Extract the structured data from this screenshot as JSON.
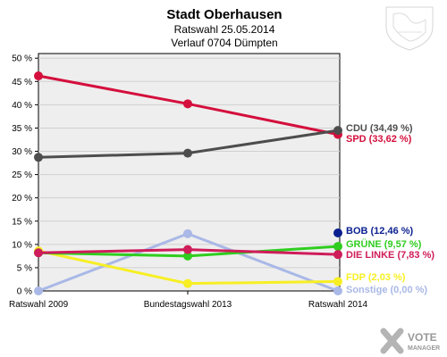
{
  "header": {
    "title": "Stadt Oberhausen",
    "subtitle1": "Ratswahl 25.05.2014",
    "subtitle2": "Verlauf 0704 Dümpten"
  },
  "watermark": {
    "line1": "VOTE",
    "line2": "MANAGER"
  },
  "chart_data": {
    "type": "line",
    "categories": [
      "Ratswahl 2009",
      "Bundestagswahl 2013",
      "Ratswahl 2014"
    ],
    "y_tick_labels": [
      "0 %",
      "5 %",
      "10 %",
      "15 %",
      "20 %",
      "25 %",
      "30 %",
      "35 %",
      "40 %",
      "45 %",
      "50 %"
    ],
    "ylim": [
      0,
      51
    ],
    "series": [
      {
        "name": "CDU",
        "label": "CDU (34,49 %)",
        "color": "#4d4d4d",
        "values": [
          28.7,
          29.6,
          34.49
        ]
      },
      {
        "name": "SPD",
        "label": "SPD (33,62 %)",
        "color": "#d40f3c",
        "values": [
          46.2,
          40.2,
          33.62
        ]
      },
      {
        "name": "BOB",
        "label": "BOB (12,46 %)",
        "color": "#0a1f8f",
        "values": [
          null,
          null,
          12.46
        ]
      },
      {
        "name": "GRÜNE",
        "label": "GRÜNE (9,57 %)",
        "color": "#2fcd1f",
        "values": [
          8.2,
          7.5,
          9.57
        ]
      },
      {
        "name": "DIE LINKE",
        "label": "DIE LINKE (7,83 %)",
        "color": "#cf1c5a",
        "values": [
          8.2,
          8.9,
          7.83
        ]
      },
      {
        "name": "FDP",
        "label": "FDP (2,03 %)",
        "color": "#f7ef24",
        "values": [
          8.6,
          1.6,
          2.03
        ]
      },
      {
        "name": "Sonstige",
        "label": "Sonstige (0,00 %)",
        "color": "#a9b8e6",
        "values": [
          0.0,
          12.3,
          0.0
        ]
      }
    ]
  }
}
